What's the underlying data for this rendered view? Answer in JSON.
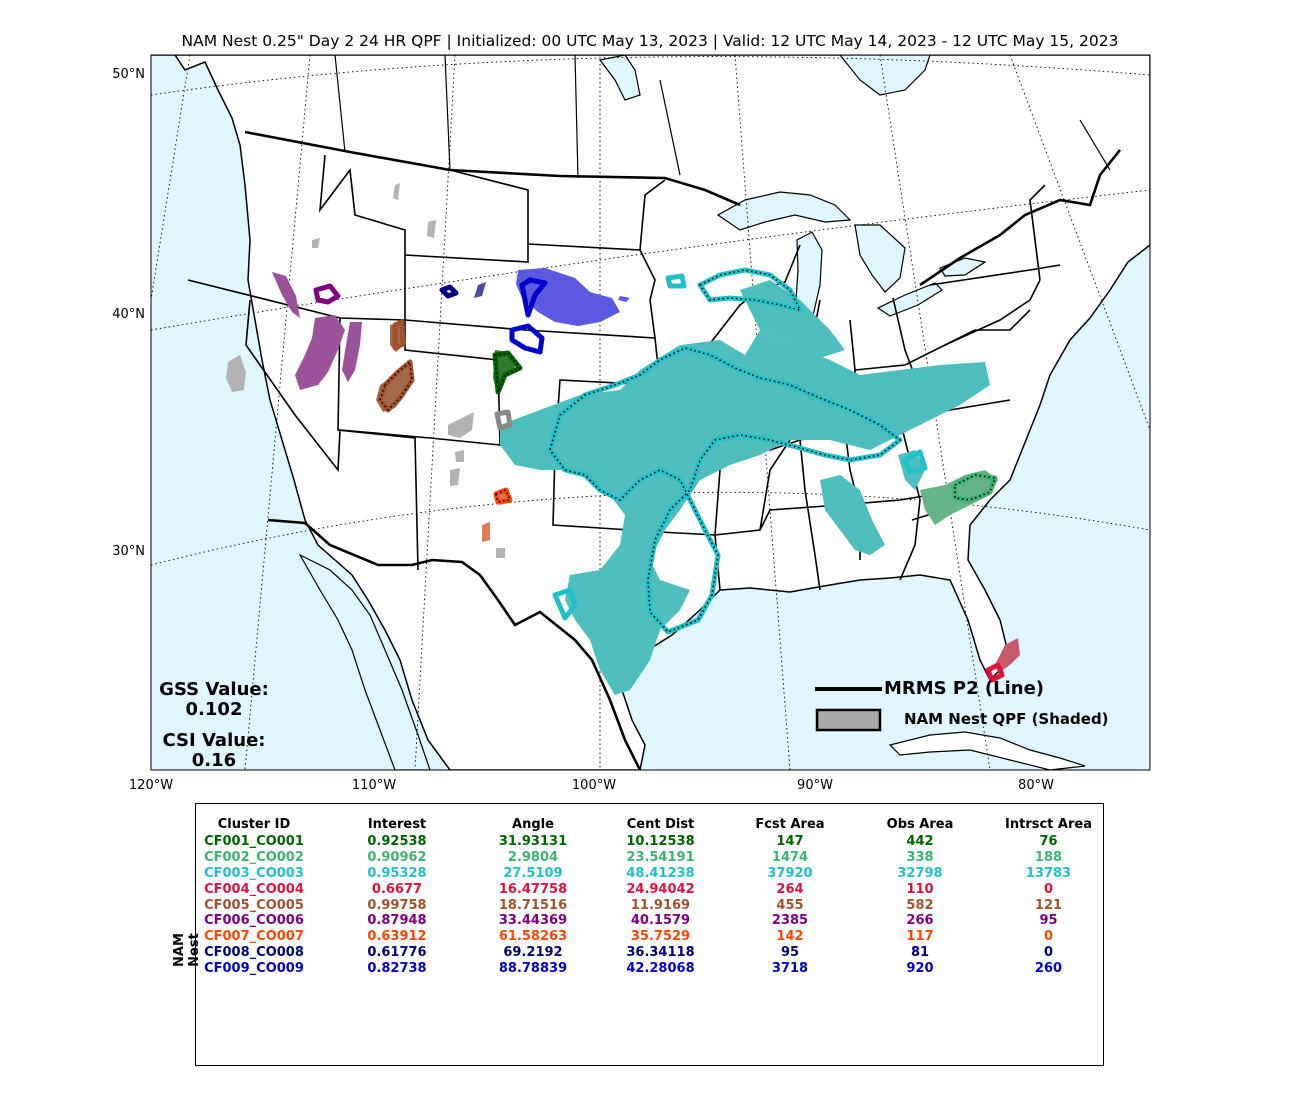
{
  "title": "NAM Nest 0.25\" Day 2 24 HR QPF | Initialized: 00 UTC May 13, 2023 | Valid: 12 UTC May 14, 2023 - 12 UTC May 15, 2023",
  "longitude_labels": [
    "120°W",
    "110°W",
    "100°W",
    "90°W",
    "80°W"
  ],
  "latitude_labels": [
    "50°N",
    "40°N",
    "30°N"
  ],
  "gss": {
    "label": "GSS Value:",
    "value": "0.102"
  },
  "csi": {
    "label": "CSI Value:",
    "value": "0.16"
  },
  "legend": {
    "line_label": "MRMS P2 (Line)",
    "shaded_label": "NAM Nest QPF (Shaded)"
  },
  "colors": {
    "ocean": "#dff6fe",
    "land": "#ffffff",
    "unmatched": "#b3b3b3"
  },
  "table": {
    "side_label": "NAM Nest",
    "headers": [
      "Cluster ID",
      "Interest",
      "Angle",
      "Cent Dist",
      "Fcst Area",
      "Obs Area",
      "Intrsct Area"
    ],
    "rows": [
      {
        "color": "#006400",
        "cells": [
          "CF001_CO001",
          "0.92538",
          "31.93131",
          "10.12538",
          "147",
          "442",
          "76"
        ]
      },
      {
        "color": "#3cb371",
        "cells": [
          "CF002_CO002",
          "0.90962",
          "2.9804",
          "23.54191",
          "1474",
          "338",
          "188"
        ]
      },
      {
        "color": "#20c0c8",
        "cells": [
          "CF003_CO003",
          "0.95328",
          "27.5109",
          "48.41238",
          "37920",
          "32798",
          "13783"
        ]
      },
      {
        "color": "#dc143c",
        "cells": [
          "CF004_CO004",
          "0.6677",
          "16.47758",
          "24.94042",
          "264",
          "110",
          "0"
        ]
      },
      {
        "color": "#a0522d",
        "cells": [
          "CF005_CO005",
          "0.99758",
          "18.71516",
          "11.9169",
          "455",
          "582",
          "121"
        ]
      },
      {
        "color": "#800080",
        "cells": [
          "CF006_CO006",
          "0.87948",
          "33.44369",
          "40.1579",
          "2385",
          "266",
          "95"
        ]
      },
      {
        "color": "#ff4500",
        "cells": [
          "CF007_CO007",
          "0.63912",
          "61.58263",
          "35.7529",
          "142",
          "117",
          "0"
        ]
      },
      {
        "color": "#000080",
        "cells": [
          "CF008_CO008",
          "0.61776",
          "69.2192",
          "36.34118",
          "95",
          "81",
          "0"
        ]
      },
      {
        "color": "#0000cd",
        "cells": [
          "CF009_CO009",
          "0.82738",
          "88.78839",
          "42.28068",
          "3718",
          "920",
          "260"
        ]
      }
    ]
  }
}
